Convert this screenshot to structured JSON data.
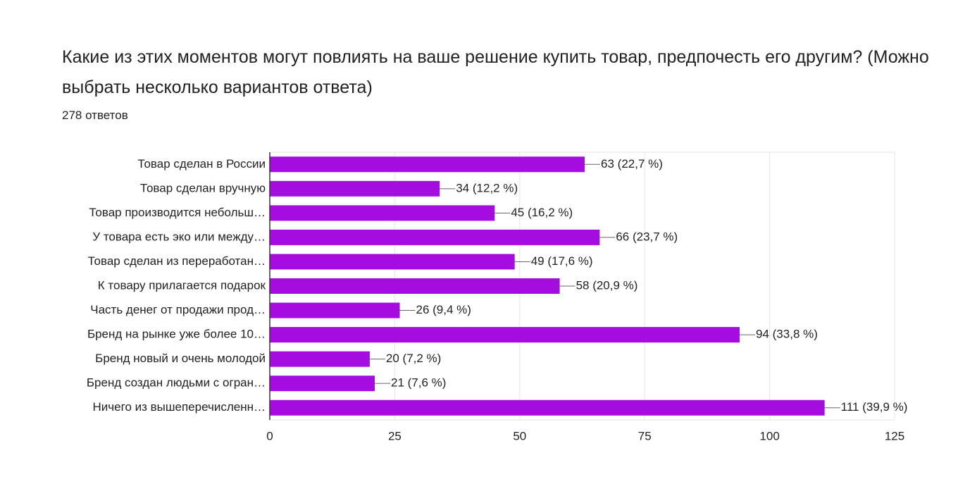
{
  "chart_data": {
    "type": "bar",
    "orientation": "horizontal",
    "title": "Какие из этих моментов могут повлиять на ваше решение купить товар, предпочесть его другим? (Можно выбрать несколько вариантов ответа)",
    "subtitle": "278 ответов",
    "categories": [
      "Товар сделан в России",
      "Товар сделан вручную",
      "Товар производится небольш…",
      "У товара есть эко или между…",
      "Товар сделан из переработан…",
      "К товару прилагается подарок",
      "Часть денег от продажи прод…",
      "Бренд на рынке уже более 10…",
      "Бренд новый и очень молодой",
      "Бренд создан людьми с огран…",
      "Ничего из вышеперечисленн…"
    ],
    "values": [
      63,
      34,
      45,
      66,
      49,
      58,
      26,
      94,
      20,
      21,
      111
    ],
    "value_labels": [
      "63 (22,7 %)",
      "34 (12,2 %)",
      "45 (16,2 %)",
      "66 (23,7 %)",
      "49 (17,6 %)",
      "58 (20,9 %)",
      "26 (9,4 %)",
      "94 (33,8 %)",
      "20 (7,2 %)",
      "21 (7,6 %)",
      "111 (39,9 %)"
    ],
    "color": "#a40ce0",
    "xlim": [
      0,
      125
    ],
    "xticks": [
      0,
      25,
      50,
      75,
      100,
      125
    ],
    "grid": true
  }
}
